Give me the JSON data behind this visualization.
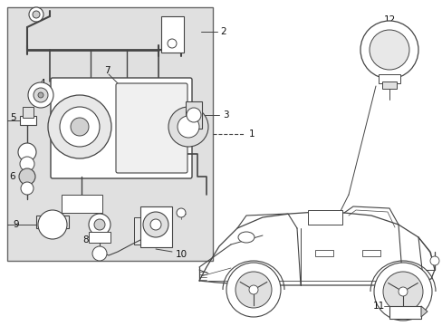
{
  "bg_color": "#ffffff",
  "box_bg": "#e0e0e0",
  "box_border": "#666666",
  "line_color": "#444444",
  "figsize": [
    4.89,
    3.6
  ],
  "dpi": 100
}
